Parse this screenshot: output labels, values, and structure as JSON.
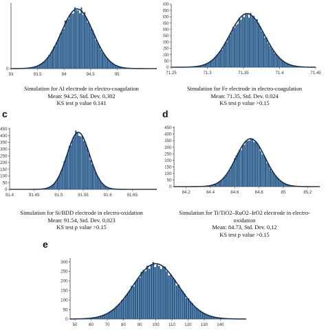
{
  "colors": {
    "bar": "#2b5c8c",
    "curve": "#0f2c52",
    "axis": "#444444"
  },
  "panels": [
    {
      "label": "",
      "caption": [
        "Simulation for Al electrode in electro-coagulation",
        "Mean: 94.25, Std. Dev. 0,302",
        "KS test p value 0.141"
      ],
      "mean": 94.25,
      "sd": 0.302,
      "xrange": [
        93,
        95.75
      ],
      "x_ticks": [
        "93",
        "93.5",
        "94",
        "94.5",
        "95"
      ],
      "x_tick_values": [
        93,
        93.5,
        94,
        94.5,
        95
      ],
      "y_ticks": [
        "0"
      ],
      "y_tick_values": [
        0
      ],
      "ymax": 320,
      "peak": 290
    },
    {
      "label": "",
      "caption": [
        "Simulation for Fe electrode in electro-coagulation",
        "Mean: 71.35, Std. Dev. 0.024",
        "KS test p value >0.15"
      ],
      "mean": 71.355,
      "sd": 0.024,
      "xrange": [
        71.25,
        71.45
      ],
      "x_ticks": [
        "71.25",
        "71.3",
        "71.35",
        "71.4",
        "71.45"
      ],
      "x_tick_values": [
        71.25,
        71.3,
        71.35,
        71.4,
        71.45
      ],
      "y_ticks": [
        "0",
        "50",
        "100",
        "150",
        "200",
        "250",
        "300",
        "350",
        "400",
        "450",
        "500"
      ],
      "y_tick_values": [
        0,
        50,
        100,
        150,
        200,
        250,
        300,
        350,
        400,
        450,
        500
      ],
      "ymax": 500,
      "peak": 425
    },
    {
      "label": "c",
      "caption": [
        "Simulation for Si/BDD electrode in electro-oxidation",
        "Mean: 91.54, Std. Dev. 0,023",
        "KS test p value >0.15"
      ],
      "mean": 91.54,
      "sd": 0.023,
      "xrange": [
        91.4,
        91.7
      ],
      "x_ticks": [
        "91.4",
        "91.45",
        "91.5",
        "91.55",
        "91.6",
        "91.65"
      ],
      "x_tick_values": [
        91.4,
        91.45,
        91.5,
        91.55,
        91.6,
        91.65
      ],
      "y_ticks": [
        "0",
        "50",
        "100",
        "150",
        "200",
        "250",
        "300",
        "350",
        "400",
        "450"
      ],
      "y_tick_values": [
        0,
        50,
        100,
        150,
        200,
        250,
        300,
        350,
        400,
        450
      ],
      "ymax": 460,
      "peak": 425
    },
    {
      "label": "d",
      "caption": [
        "Simulation for Ti/TiO2–RuO2–IrO2 electrode in electro-",
        "oxidation",
        "Mean: 84.73, Std. Dev. 0,12",
        "KS test p value >0.15"
      ],
      "mean": 84.73,
      "sd": 0.12,
      "xrange": [
        84.1,
        85.3
      ],
      "x_ticks": [
        "84.2",
        "84.4",
        "84.6",
        "84.8",
        "85",
        "85.2"
      ],
      "x_tick_values": [
        84.2,
        84.4,
        84.6,
        84.8,
        85,
        85.2
      ],
      "y_ticks": [
        "0",
        "50",
        "100",
        "150",
        "200",
        "250",
        "300",
        "350",
        "400",
        "450"
      ],
      "y_tick_values": [
        0,
        50,
        100,
        150,
        200,
        250,
        300,
        350,
        400,
        450
      ],
      "ymax": 460,
      "peak": 365
    },
    {
      "label": "e",
      "caption": [],
      "mean": 100,
      "sd": 14,
      "xrange": [
        47,
        156
      ],
      "x_ticks": [
        "50",
        "60",
        "70",
        "80",
        "90",
        "100",
        "110",
        "120",
        "130",
        "140"
      ],
      "x_tick_values": [
        50,
        60,
        70,
        80,
        90,
        100,
        110,
        120,
        130,
        140
      ],
      "y_ticks": [
        "0",
        "50",
        "100",
        "150",
        "200",
        "250",
        "300"
      ],
      "y_tick_values": [
        0,
        50,
        100,
        150,
        200,
        250,
        300
      ],
      "ymax": 320,
      "peak": 290
    }
  ],
  "chart_data": [
    {
      "type": "bar",
      "title": "",
      "distribution": "normal histogram with fitted curve",
      "mean": 94.25,
      "std_dev": 0.302,
      "x_ticks": [
        93,
        93.5,
        94,
        94.5,
        95
      ],
      "peak_count": 290
    },
    {
      "type": "bar",
      "title": "",
      "distribution": "normal histogram with fitted curve",
      "mean": 71.35,
      "std_dev": 0.024,
      "x_ticks": [
        71.25,
        71.3,
        71.35,
        71.4,
        71.45
      ],
      "y_ticks": [
        0,
        50,
        100,
        150,
        200,
        250,
        300,
        350,
        400,
        450,
        500
      ],
      "peak_count": 425
    },
    {
      "type": "bar",
      "title": "",
      "distribution": "normal histogram with fitted curve",
      "mean": 91.54,
      "std_dev": 0.023,
      "x_ticks": [
        91.4,
        91.45,
        91.5,
        91.55,
        91.6,
        91.65
      ],
      "y_ticks": [
        0,
        50,
        100,
        150,
        200,
        250,
        300,
        350,
        400,
        450
      ],
      "peak_count": 425
    },
    {
      "type": "bar",
      "title": "",
      "distribution": "normal histogram with fitted curve",
      "mean": 84.73,
      "std_dev": 0.12,
      "x_ticks": [
        84.2,
        84.4,
        84.6,
        84.8,
        85,
        85.2
      ],
      "y_ticks": [
        0,
        50,
        100,
        150,
        200,
        250,
        300,
        350,
        400,
        450
      ],
      "peak_count": 365
    },
    {
      "type": "bar",
      "title": "",
      "distribution": "normal histogram with fitted curve",
      "mean": 100,
      "std_dev": 14,
      "x_ticks": [
        50,
        60,
        70,
        80,
        90,
        100,
        110,
        120,
        130,
        140
      ],
      "y_ticks": [
        0,
        50,
        100,
        150,
        200,
        250,
        300
      ],
      "peak_count": 290
    }
  ]
}
